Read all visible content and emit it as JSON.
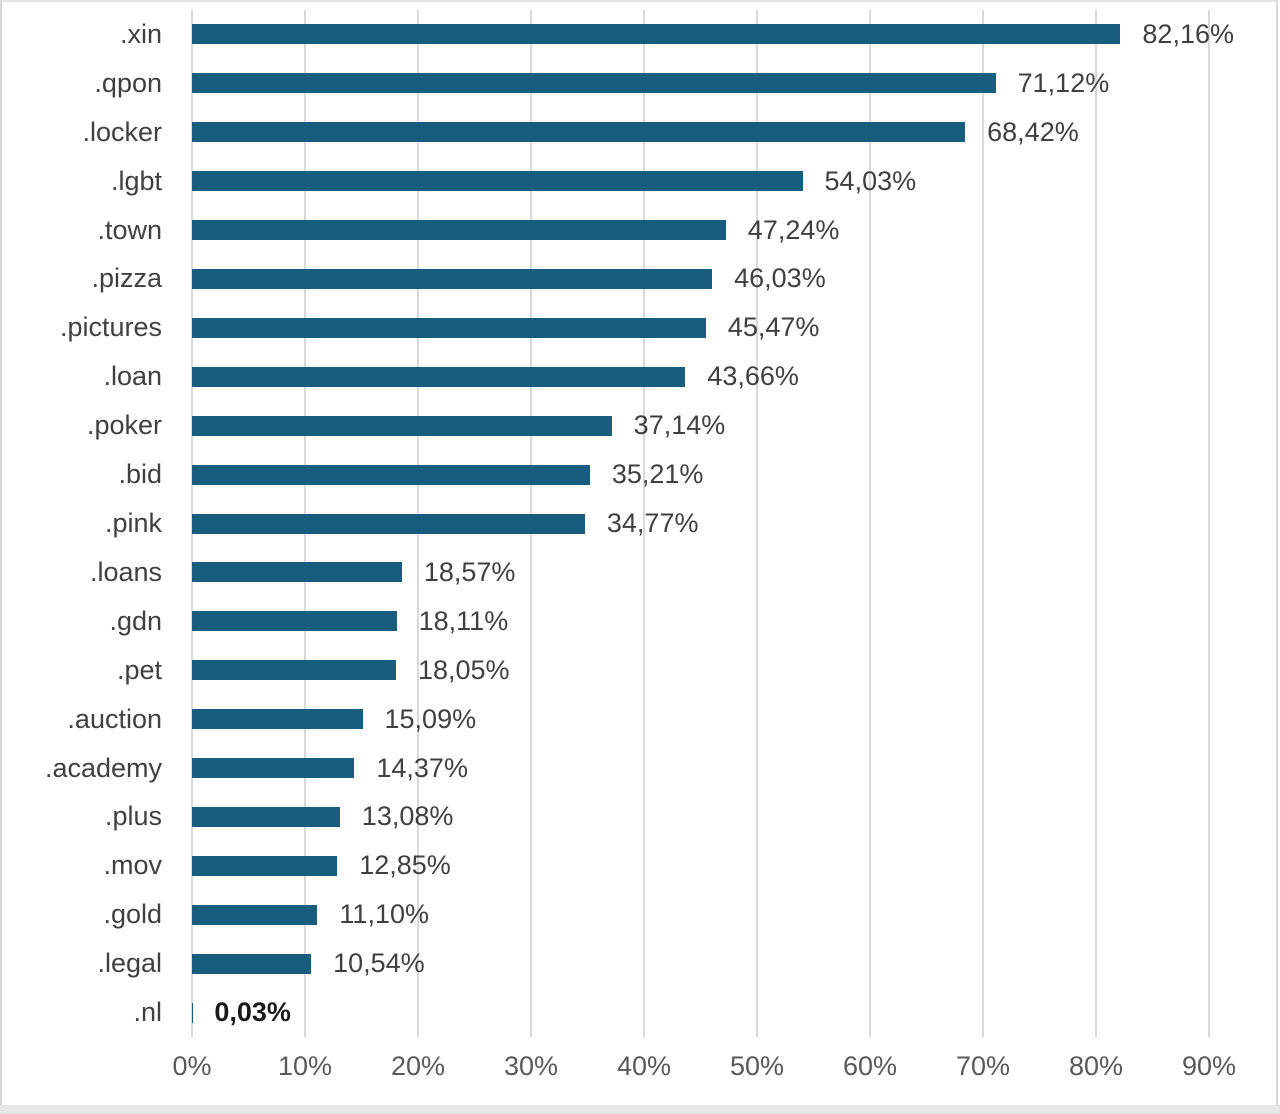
{
  "page": {
    "background_color": "#ffffff",
    "frame_border_color": "#d6d6d6",
    "bottom_strip_color": "#e7e7e7"
  },
  "chart_data": {
    "type": "bar",
    "orientation": "horizontal",
    "title": "",
    "xlabel": "",
    "ylabel": "",
    "xlim": [
      0,
      90
    ],
    "x_ticks": [
      "0%",
      "10%",
      "20%",
      "30%",
      "40%",
      "50%",
      "60%",
      "70%",
      "80%",
      "90%"
    ],
    "grid": true,
    "legend": false,
    "bar_color": "#175e7e",
    "gridline_color": "#d9d9d9",
    "category_label_color": "#404040",
    "value_label_color": "#404040",
    "axis_tick_color": "#595959",
    "decimal_separator": ",",
    "categories": [
      ".xin",
      ".qpon",
      ".locker",
      ".lgbt",
      ".town",
      ".pizza",
      ".pictures",
      ".loan",
      ".poker",
      ".bid",
      ".pink",
      ".loans",
      ".gdn",
      ".pet",
      ".auction",
      ".academy",
      ".plus",
      ".mov",
      ".gold",
      ".legal",
      ".nl"
    ],
    "values": [
      82.16,
      71.12,
      68.42,
      54.03,
      47.24,
      46.03,
      45.47,
      43.66,
      37.14,
      35.21,
      34.77,
      18.57,
      18.11,
      18.05,
      15.09,
      14.37,
      13.08,
      12.85,
      11.1,
      10.54,
      0.03
    ],
    "series": [
      {
        "category": ".xin",
        "value": 82.16,
        "display": "82,16%",
        "emphasis": false
      },
      {
        "category": ".qpon",
        "value": 71.12,
        "display": "71,12%",
        "emphasis": false
      },
      {
        "category": ".locker",
        "value": 68.42,
        "display": "68,42%",
        "emphasis": false
      },
      {
        "category": ".lgbt",
        "value": 54.03,
        "display": "54,03%",
        "emphasis": false
      },
      {
        "category": ".town",
        "value": 47.24,
        "display": "47,24%",
        "emphasis": false
      },
      {
        "category": ".pizza",
        "value": 46.03,
        "display": "46,03%",
        "emphasis": false
      },
      {
        "category": ".pictures",
        "value": 45.47,
        "display": "45,47%",
        "emphasis": false
      },
      {
        "category": ".loan",
        "value": 43.66,
        "display": "43,66%",
        "emphasis": false
      },
      {
        "category": ".poker",
        "value": 37.14,
        "display": "37,14%",
        "emphasis": false
      },
      {
        "category": ".bid",
        "value": 35.21,
        "display": "35,21%",
        "emphasis": false
      },
      {
        "category": ".pink",
        "value": 34.77,
        "display": "34,77%",
        "emphasis": false
      },
      {
        "category": ".loans",
        "value": 18.57,
        "display": "18,57%",
        "emphasis": false
      },
      {
        "category": ".gdn",
        "value": 18.11,
        "display": "18,11%",
        "emphasis": false
      },
      {
        "category": ".pet",
        "value": 18.05,
        "display": "18,05%",
        "emphasis": false
      },
      {
        "category": ".auction",
        "value": 15.09,
        "display": "15,09%",
        "emphasis": false
      },
      {
        "category": ".academy",
        "value": 14.37,
        "display": "14,37%",
        "emphasis": false
      },
      {
        "category": ".plus",
        "value": 13.08,
        "display": "13,08%",
        "emphasis": false
      },
      {
        "category": ".mov",
        "value": 12.85,
        "display": "12,85%",
        "emphasis": false
      },
      {
        "category": ".gold",
        "value": 11.1,
        "display": "11,10%",
        "emphasis": false
      },
      {
        "category": ".legal",
        "value": 10.54,
        "display": "10,54%",
        "emphasis": false
      },
      {
        "category": ".nl",
        "value": 0.03,
        "display": "0,03%",
        "emphasis": true
      }
    ]
  }
}
